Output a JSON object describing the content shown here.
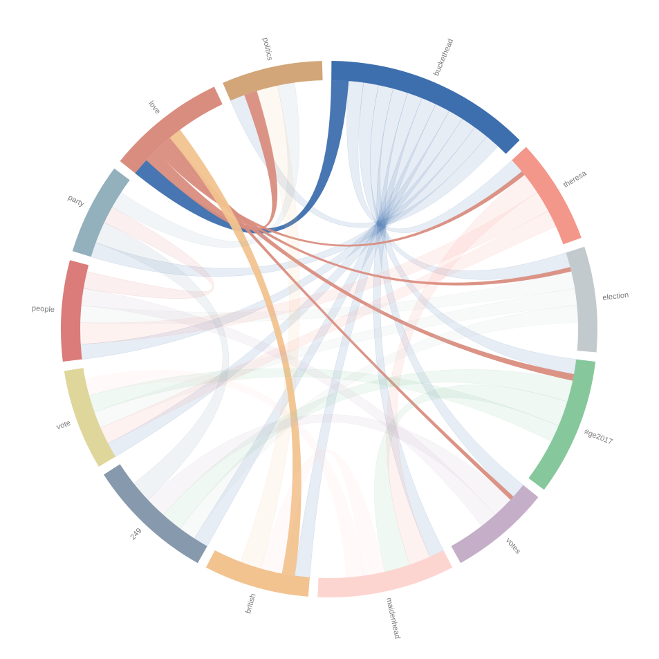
{
  "chart_data": {
    "type": "chord",
    "groups": [
      {
        "name": "buckethead",
        "color": "#3d6fae",
        "value": 45
      },
      {
        "name": "theresa",
        "color": "#f4978b",
        "value": 23
      },
      {
        "name": "election",
        "color": "#c3cacd",
        "value": 23
      },
      {
        "name": "#ge2017",
        "color": "#86c89c",
        "value": 30
      },
      {
        "name": "votes",
        "color": "#c5aec8",
        "value": 22
      },
      {
        "name": "maidenhead",
        "color": "#fdd5d0",
        "value": 30
      },
      {
        "name": "british",
        "color": "#f2c38f",
        "value": 23
      },
      {
        "name": "249",
        "color": "#8799ac",
        "value": 28
      },
      {
        "name": "vote",
        "color": "#dfd69b",
        "value": 22
      },
      {
        "name": "people",
        "color": "#db7c7a",
        "value": 22
      },
      {
        "name": "party",
        "color": "#93b0bd",
        "value": 20
      },
      {
        "name": "love",
        "color": "#d98d7f",
        "value": 26
      },
      {
        "name": "politics",
        "color": "#d2a679",
        "value": 22
      }
    ],
    "focus": "love",
    "chords": [
      {
        "source": 0,
        "target": 11,
        "value": 4
      },
      {
        "source": 0,
        "target": 1,
        "value": 3.5
      },
      {
        "source": 0,
        "target": 2,
        "value": 3.5
      },
      {
        "source": 0,
        "target": 3,
        "value": 3.5
      },
      {
        "source": 0,
        "target": 4,
        "value": 3.5
      },
      {
        "source": 0,
        "target": 5,
        "value": 3.5
      },
      {
        "source": 0,
        "target": 6,
        "value": 3.5
      },
      {
        "source": 0,
        "target": 7,
        "value": 3.5
      },
      {
        "source": 0,
        "target": 8,
        "value": 3.5
      },
      {
        "source": 0,
        "target": 9,
        "value": 3.5
      },
      {
        "source": 0,
        "target": 10,
        "value": 3.5
      },
      {
        "source": 0,
        "target": 12,
        "value": 3.5
      },
      {
        "source": 11,
        "target": 12,
        "value": 3
      },
      {
        "source": 11,
        "target": 1,
        "value": 1
      },
      {
        "source": 11,
        "target": 2,
        "value": 1
      },
      {
        "source": 11,
        "target": 3,
        "value": 1.5
      },
      {
        "source": 11,
        "target": 4,
        "value": 1
      },
      {
        "source": 6,
        "target": 11,
        "value": 3
      },
      {
        "source": 1,
        "target": 5,
        "value": 5
      },
      {
        "source": 1,
        "target": 9,
        "value": 5
      },
      {
        "source": 1,
        "target": 8,
        "value": 4
      },
      {
        "source": 2,
        "target": 9,
        "value": 4
      },
      {
        "source": 2,
        "target": 8,
        "value": 4
      },
      {
        "source": 2,
        "target": 7,
        "value": 4
      },
      {
        "source": 3,
        "target": 7,
        "value": 5
      },
      {
        "source": 3,
        "target": 5,
        "value": 6
      },
      {
        "source": 3,
        "target": 8,
        "value": 4
      },
      {
        "source": 4,
        "target": 7,
        "value": 5
      },
      {
        "source": 4,
        "target": 9,
        "value": 4
      },
      {
        "source": 5,
        "target": 6,
        "value": 5
      },
      {
        "source": 5,
        "target": 8,
        "value": 4
      },
      {
        "source": 6,
        "target": 12,
        "value": 5
      },
      {
        "source": 7,
        "target": 10,
        "value": 5
      },
      {
        "source": 9,
        "target": 10,
        "value": 4
      },
      {
        "source": 10,
        "target": 12,
        "value": 4
      }
    ]
  }
}
